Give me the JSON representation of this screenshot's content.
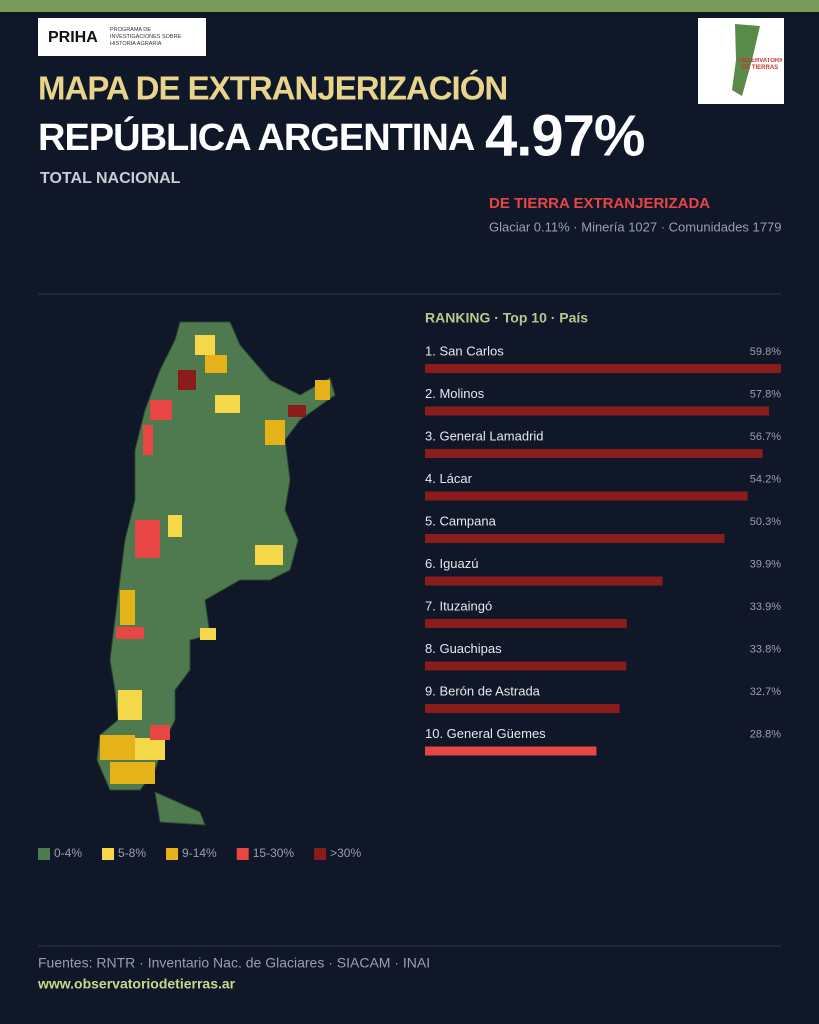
{
  "header": {
    "logo_text": "PRIHA",
    "logo_subtitle": "PROGRAMA DE INVESTIGACIONES SOBRE HISTORIA AGRARIA",
    "badge": "OBSERVATORIO DE TIERRAS",
    "title": "MAPA DE EXTRANJERIZACIÓN",
    "subtitle": "REPÚBLICA ARGENTINA",
    "total_value": "4.97%",
    "total_label": "TOTAL NACIONAL",
    "total_caption": "DE TIERRA EXTRANJERIZADA",
    "stats": "Glaciar 0.11% · Minería 1027 · Comunidades 1779"
  },
  "chart_data": {
    "type": "bar",
    "title": "RANKING · Top 10 · País",
    "categories": [
      "1. San Carlos",
      "2. Molinos",
      "3. General Lamadrid",
      "4. Lácar",
      "5. Campana",
      "6. Iguazú",
      "7. Ituzaingó",
      "8. Guachipas",
      "9. Berón de Astrada",
      "10. General Güemes"
    ],
    "values": [
      59.8,
      57.8,
      56.7,
      54.2,
      50.3,
      39.9,
      33.9,
      33.8,
      32.7,
      28.8
    ],
    "value_labels": [
      "59.8%",
      "57.8%",
      "56.7%",
      "54.2%",
      "50.3%",
      "39.9%",
      "33.9%",
      "33.8%",
      "32.7%",
      "28.8%"
    ],
    "colors": [
      "#8b1c1c",
      "#8b1c1c",
      "#8b1c1c",
      "#8b1c1c",
      "#8b1c1c",
      "#8b1c1c",
      "#8b1c1c",
      "#8b1c1c",
      "#8b1c1c",
      "#e84545"
    ]
  },
  "legend": {
    "items": [
      {
        "label": "0-4%",
        "color": "#4f7a4f"
      },
      {
        "label": "5-8%",
        "color": "#f5d84a"
      },
      {
        "label": "9-14%",
        "color": "#e6b21a"
      },
      {
        "label": "15-30%",
        "color": "#e84545"
      },
      {
        "label": ">30%",
        "color": "#8b1c1c"
      }
    ]
  },
  "footer": {
    "sources": "Fuentes: RNTR · Inventario Nac. de Glaciares · SIACAM · INAI",
    "url": "www.observatoriodetierras.ar"
  }
}
